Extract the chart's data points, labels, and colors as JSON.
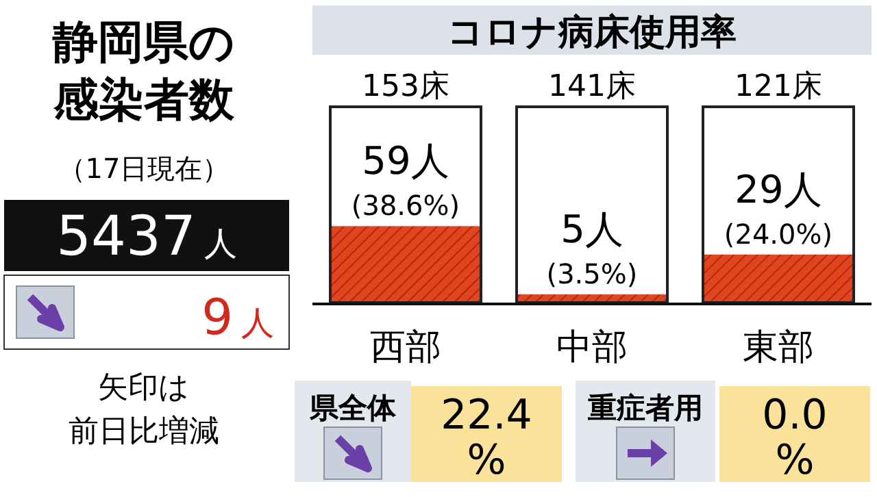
{
  "chart_data": [
    {
      "type": "other",
      "title": "静岡県の感染者数",
      "subtitle": "（17日現在）",
      "annotations": [
        "5437人",
        "9人",
        "矢印は",
        "前日比増減"
      ]
    },
    {
      "type": "bar",
      "title": "コロナ病床使用率",
      "categories": [
        "西部",
        "中部",
        "東部"
      ],
      "values": [
        38.6,
        3.5,
        24.0
      ],
      "ylim": [
        0,
        100
      ],
      "color": "#e0451f",
      "value_labels": [
        "59人\n(38.6%)",
        "5人\n(3.5%)",
        "29人\n(24.0%)"
      ],
      "annotations": [
        "153床",
        "141床",
        "121床"
      ]
    },
    {
      "type": "other",
      "annotations": [
        "県全体",
        "22.4\n%",
        "重症者用",
        "0.0\n%"
      ]
    }
  ]
}
